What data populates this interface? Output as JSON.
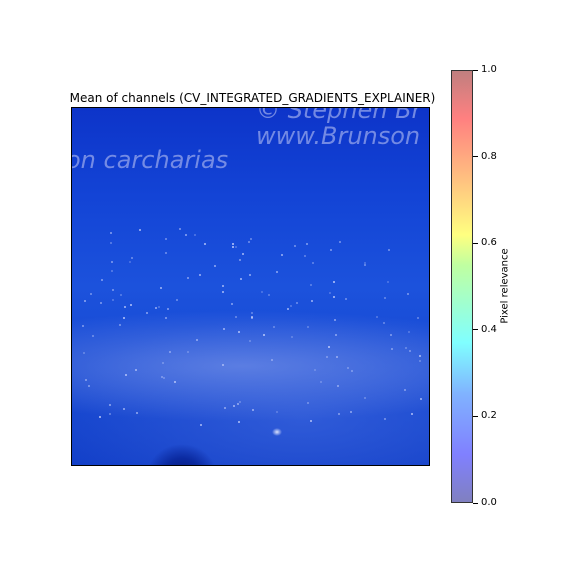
{
  "chart_data": {
    "type": "heatmap",
    "title": "Mean of channels (CV_INTEGRATED_GRADIENTS_EXPLAINER)",
    "image_watermark_lines": [
      "© Stephen Br",
      "www.Brunson",
      "on carcharias"
    ],
    "colorbar": {
      "label": "Pixel relevance",
      "range": [
        0.0,
        1.0
      ],
      "ticks": [
        "0.0",
        "0.2",
        "0.4",
        "0.6",
        "0.8",
        "1.0"
      ],
      "colormap": "jet",
      "alpha": 0.5
    },
    "xlabel": "",
    "ylabel": "",
    "axes_visible": false
  }
}
